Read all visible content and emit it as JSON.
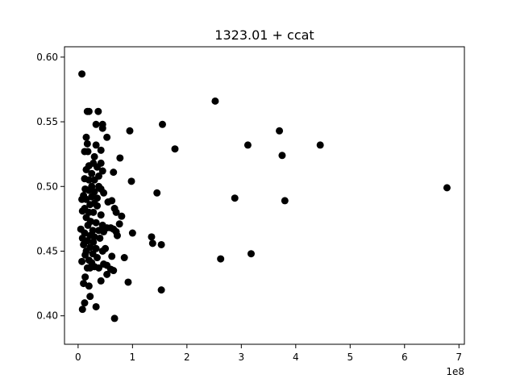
{
  "chart_data": {
    "type": "scatter",
    "title": "1323.01 + ccat",
    "xlabel": "",
    "ylabel": "",
    "x_offset_label": "1e8",
    "xlim": [
      -0.25,
      7.1
    ],
    "ylim": [
      0.378,
      0.608
    ],
    "x_ticks": [
      0,
      1,
      2,
      3,
      4,
      5,
      6,
      7
    ],
    "x_tick_labels": [
      "0",
      "1",
      "2",
      "3",
      "4",
      "5",
      "6",
      "7"
    ],
    "y_ticks": [
      0.4,
      0.45,
      0.5,
      0.55,
      0.6
    ],
    "y_tick_labels": [
      "0.40",
      "0.45",
      "0.50",
      "0.55",
      "0.60"
    ],
    "grid": false,
    "legend": null,
    "colors": {
      "marker": "#000000",
      "axes": "#000000",
      "background": "#ffffff"
    },
    "x_scale_note": "x values in units of 1e8",
    "points": [
      [
        0.07,
        0.587
      ],
      [
        0.17,
        0.558
      ],
      [
        0.2,
        0.558
      ],
      [
        0.37,
        0.558
      ],
      [
        0.33,
        0.548
      ],
      [
        0.45,
        0.548
      ],
      [
        0.45,
        0.545
      ],
      [
        0.15,
        0.538
      ],
      [
        0.53,
        0.538
      ],
      [
        0.17,
        0.533
      ],
      [
        0.33,
        0.532
      ],
      [
        0.42,
        0.528
      ],
      [
        0.12,
        0.527
      ],
      [
        0.18,
        0.527
      ],
      [
        0.3,
        0.523
      ],
      [
        0.28,
        0.518
      ],
      [
        0.42,
        0.518
      ],
      [
        0.2,
        0.516
      ],
      [
        0.35,
        0.515
      ],
      [
        0.15,
        0.513
      ],
      [
        0.45,
        0.512
      ],
      [
        0.25,
        0.51
      ],
      [
        0.38,
        0.508
      ],
      [
        0.12,
        0.506
      ],
      [
        0.2,
        0.505
      ],
      [
        0.3,
        0.505
      ],
      [
        0.25,
        0.5
      ],
      [
        0.38,
        0.5
      ],
      [
        0.42,
        0.498
      ],
      [
        0.13,
        0.498
      ],
      [
        0.2,
        0.497
      ],
      [
        0.3,
        0.496
      ],
      [
        0.47,
        0.495
      ],
      [
        0.1,
        0.493
      ],
      [
        0.25,
        0.492
      ],
      [
        0.35,
        0.491
      ],
      [
        0.07,
        0.49
      ],
      [
        0.15,
        0.49
      ],
      [
        0.55,
        0.488
      ],
      [
        0.62,
        0.489
      ],
      [
        0.3,
        0.487
      ],
      [
        0.22,
        0.486
      ],
      [
        0.35,
        0.485
      ],
      [
        0.12,
        0.483
      ],
      [
        0.67,
        0.483
      ],
      [
        0.08,
        0.481
      ],
      [
        0.2,
        0.48
      ],
      [
        0.28,
        0.48
      ],
      [
        0.7,
        0.48
      ],
      [
        0.42,
        0.478
      ],
      [
        0.15,
        0.476
      ],
      [
        0.8,
        0.477
      ],
      [
        0.23,
        0.473
      ],
      [
        0.33,
        0.472
      ],
      [
        0.76,
        0.471
      ],
      [
        0.45,
        0.47
      ],
      [
        0.18,
        0.47
      ],
      [
        0.53,
        0.468
      ],
      [
        0.6,
        0.468
      ],
      [
        0.65,
        0.467
      ],
      [
        0.05,
        0.467
      ],
      [
        0.27,
        0.466
      ],
      [
        0.38,
        0.466
      ],
      [
        0.7,
        0.465
      ],
      [
        0.12,
        0.464
      ],
      [
        0.47,
        0.465
      ],
      [
        1.0,
        0.464
      ],
      [
        0.22,
        0.462
      ],
      [
        0.3,
        0.461
      ],
      [
        0.72,
        0.462
      ],
      [
        0.08,
        0.46
      ],
      [
        0.4,
        0.46
      ],
      [
        0.17,
        0.458
      ],
      [
        0.28,
        0.457
      ],
      [
        1.35,
        0.461
      ],
      [
        1.37,
        0.456
      ],
      [
        1.53,
        0.455
      ],
      [
        0.1,
        0.455
      ],
      [
        0.22,
        0.453
      ],
      [
        0.33,
        0.452
      ],
      [
        0.5,
        0.452
      ],
      [
        0.15,
        0.45
      ],
      [
        0.45,
        0.45
      ],
      [
        0.27,
        0.448
      ],
      [
        0.13,
        0.447
      ],
      [
        0.62,
        0.446
      ],
      [
        0.85,
        0.445
      ],
      [
        0.35,
        0.445
      ],
      [
        0.2,
        0.443
      ],
      [
        0.07,
        0.442
      ],
      [
        0.25,
        0.441
      ],
      [
        0.47,
        0.44
      ],
      [
        0.53,
        0.439
      ],
      [
        0.3,
        0.438
      ],
      [
        0.17,
        0.437
      ],
      [
        0.22,
        0.437
      ],
      [
        0.38,
        0.437
      ],
      [
        0.6,
        0.436
      ],
      [
        0.65,
        0.435
      ],
      [
        0.53,
        0.432
      ],
      [
        0.13,
        0.43
      ],
      [
        0.42,
        0.427
      ],
      [
        0.92,
        0.426
      ],
      [
        0.1,
        0.425
      ],
      [
        0.2,
        0.423
      ],
      [
        0.22,
        0.415
      ],
      [
        0.12,
        0.41
      ],
      [
        0.33,
        0.407
      ],
      [
        0.08,
        0.405
      ],
      [
        0.67,
        0.398
      ],
      [
        0.95,
        0.543
      ],
      [
        1.55,
        0.548
      ],
      [
        1.78,
        0.529
      ],
      [
        0.77,
        0.522
      ],
      [
        0.65,
        0.511
      ],
      [
        0.98,
        0.504
      ],
      [
        1.45,
        0.495
      ],
      [
        1.53,
        0.42
      ],
      [
        2.52,
        0.566
      ],
      [
        2.62,
        0.444
      ],
      [
        2.88,
        0.491
      ],
      [
        3.12,
        0.532
      ],
      [
        3.18,
        0.448
      ],
      [
        3.7,
        0.543
      ],
      [
        3.75,
        0.524
      ],
      [
        3.8,
        0.489
      ],
      [
        4.45,
        0.532
      ],
      [
        6.78,
        0.499
      ]
    ]
  }
}
